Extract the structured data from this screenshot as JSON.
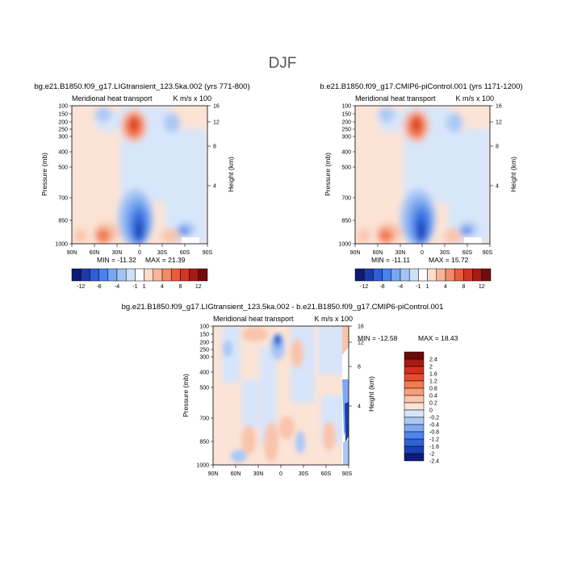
{
  "figure": {
    "title": "DJF"
  },
  "chart_data": [
    {
      "type": "heatmap",
      "title": "bg.e21.B1850.f09_g17.LIGtransient_123.5ka.002 (yrs 771-800)",
      "subtitle": "Meridional heat transport",
      "units": "K m/s x 100",
      "ylabel": "Pressure (mb)",
      "y2label": "Height (km)",
      "x_ticks": [
        "90N",
        "60N",
        "30N",
        "0",
        "30S",
        "60S",
        "90S"
      ],
      "y_ticks": [
        "100",
        "150",
        "200",
        "250",
        "300",
        "400",
        "500",
        "700",
        "850",
        "1000"
      ],
      "y2_ticks": [
        "16",
        "12",
        "8",
        "4"
      ],
      "min_label": "MIN = -11.32",
      "max_label": "MAX = 21.39",
      "colorbar_labels": [
        "-12",
        "-8",
        "-4",
        "-1",
        "1",
        "4",
        "8",
        "12"
      ]
    },
    {
      "type": "heatmap",
      "title": "b.e21.B1850.f09_g17.CMIP6-piControl.001 (yrs 1171-1200)",
      "subtitle": "Meridional heat transport",
      "units": "K m/s x 100",
      "ylabel": "Pressure (mb)",
      "y2label": "Height (km)",
      "x_ticks": [
        "90N",
        "60N",
        "30N",
        "0",
        "30S",
        "60S",
        "90S"
      ],
      "y_ticks": [
        "100",
        "150",
        "200",
        "250",
        "300",
        "400",
        "500",
        "700",
        "850",
        "1000"
      ],
      "y2_ticks": [
        "16",
        "12",
        "8",
        "4"
      ],
      "min_label": "MIN = -11.11",
      "max_label": "MAX = 15.72",
      "colorbar_labels": [
        "-12",
        "-8",
        "-4",
        "-1",
        "1",
        "4",
        "8",
        "12"
      ]
    },
    {
      "type": "heatmap",
      "title": "bg.e21.B1850.f09_g17.LIGtransient_123.5ka.002 - b.e21.B1850.f09_g17.CMIP6-piControl.001",
      "subtitle": "Meridional heat transport",
      "units": "K m/s x 100",
      "ylabel": "Pressure (mb)",
      "y2label": "Height (km)",
      "x_ticks": [
        "90N",
        "60N",
        "30N",
        "0",
        "30S",
        "60S",
        "90S"
      ],
      "y_ticks": [
        "100",
        "150",
        "200",
        "250",
        "300",
        "400",
        "500",
        "700",
        "850",
        "1000"
      ],
      "y2_ticks": [
        "16",
        "12",
        "8",
        "4"
      ],
      "min_label": "MIN = -12.58",
      "max_label": "MAX = 18.43",
      "colorbar_labels": [
        "2.4",
        "2",
        "1.6",
        "1.2",
        "0.8",
        "0.4",
        "0.2",
        "0",
        "-0.2",
        "-0.4",
        "-0.8",
        "-1.2",
        "-1.6",
        "-2",
        "-2.4"
      ]
    }
  ],
  "colors": {
    "horizontal_scale": [
      "#0b1a74",
      "#1a3ba8",
      "#2f5fd6",
      "#4a82ee",
      "#78a7f2",
      "#a3c4f5",
      "#cfe0f9",
      "#fdfdfd",
      "#fbddc9",
      "#f8b59a",
      "#f48a68",
      "#ec5c3a",
      "#d33524",
      "#a81a14",
      "#740b0b"
    ],
    "vertical_scale": [
      "#6b0a0a",
      "#a81a14",
      "#d42e1f",
      "#ec4a2c",
      "#f27b55",
      "#f59e7b",
      "#f9c4ab",
      "#fbe3d6",
      "#d6e5fa",
      "#abc8f5",
      "#7faaf0",
      "#4f86ea",
      "#2d63d7",
      "#1a40b2",
      "#0c1c7a"
    ]
  }
}
